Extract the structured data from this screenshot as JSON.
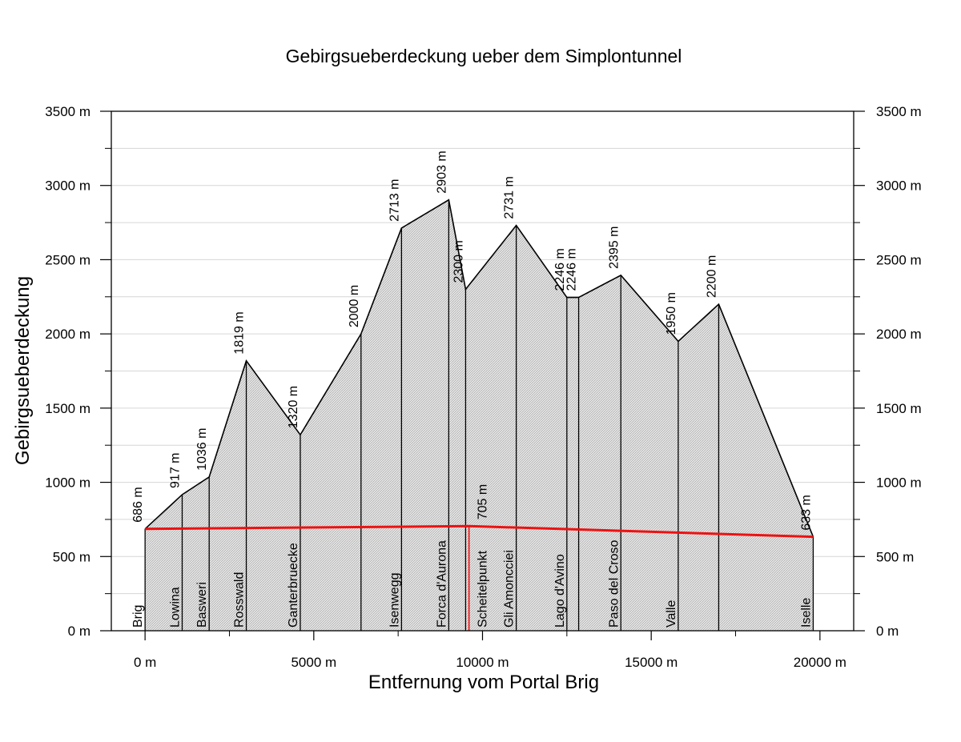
{
  "chart_data": {
    "type": "area",
    "title": "Gebirgsueberdeckung ueber dem Simplontunnel",
    "xlabel": "Entfernung vom Portal Brig",
    "ylabel": "Gebirgsueberdeckung",
    "xlim": [
      -1000,
      21000
    ],
    "ylim": [
      0,
      3500
    ],
    "x_ticks": [
      {
        "value": 0,
        "label": "0 m"
      },
      {
        "value": 5000,
        "label": "5000 m"
      },
      {
        "value": 10000,
        "label": "10000 m"
      },
      {
        "value": 15000,
        "label": "15000 m"
      },
      {
        "value": 20000,
        "label": "20000 m"
      }
    ],
    "y_ticks": [
      {
        "value": 0,
        "label": "0 m"
      },
      {
        "value": 500,
        "label": "500 m"
      },
      {
        "value": 1000,
        "label": "1000 m"
      },
      {
        "value": 1500,
        "label": "1500 m"
      },
      {
        "value": 2000,
        "label": "2000 m"
      },
      {
        "value": 2500,
        "label": "2500 m"
      },
      {
        "value": 3000,
        "label": "3000 m"
      },
      {
        "value": 3500,
        "label": "3500 m"
      }
    ],
    "minor_y_ticks": [
      250,
      750,
      1250,
      1750,
      2250,
      2750,
      3250
    ],
    "minor_x_ticks": [
      2500,
      7500,
      12500,
      17500
    ],
    "grid": "horizontal",
    "profile": [
      {
        "x": 0,
        "y": 686,
        "value_label": "686 m",
        "place": "Brig"
      },
      {
        "x": 1100,
        "y": 917,
        "value_label": "917 m",
        "place": "Lowina"
      },
      {
        "x": 1900,
        "y": 1036,
        "value_label": "1036 m",
        "place": "Basweri"
      },
      {
        "x": 3000,
        "y": 1819,
        "value_label": "1819 m",
        "place": "Rosswald"
      },
      {
        "x": 4600,
        "y": 1320,
        "value_label": "1320 m",
        "place": "Ganterbruecke"
      },
      {
        "x": 6400,
        "y": 2000,
        "value_label": "2000 m",
        "place": ""
      },
      {
        "x": 7600,
        "y": 2713,
        "value_label": "2713 m",
        "place": "Isenwegg"
      },
      {
        "x": 9000,
        "y": 2903,
        "value_label": "2903 m",
        "place": "Forca d'Aurona"
      },
      {
        "x": 9500,
        "y": 2300,
        "value_label": "2300 m",
        "place": ""
      },
      {
        "x": 11000,
        "y": 2731,
        "value_label": "2731 m",
        "place": "Gli Amoncciei"
      },
      {
        "x": 12500,
        "y": 2246,
        "value_label": "2246 m",
        "place": "Lago d'Avino"
      },
      {
        "x": 12850,
        "y": 2246,
        "value_label": "2246 m",
        "place": ""
      },
      {
        "x": 14100,
        "y": 2395,
        "value_label": "2395 m",
        "place": "Paso del Croso"
      },
      {
        "x": 15800,
        "y": 1950,
        "value_label": "1950 m",
        "place": "Valle"
      },
      {
        "x": 17000,
        "y": 2200,
        "value_label": "2200 m",
        "place": ""
      },
      {
        "x": 19800,
        "y": 633,
        "value_label": "633 m",
        "place": "Iselle"
      }
    ],
    "tunnel": {
      "color": "#ee1111",
      "points": [
        {
          "x": 0,
          "y": 686
        },
        {
          "x": 9600,
          "y": 705
        },
        {
          "x": 19800,
          "y": 633
        }
      ],
      "summit": {
        "x": 9600,
        "y": 705,
        "value_label": "705 m",
        "label": "Scheitelpunkt"
      }
    },
    "fill_color": "#d9d9d9"
  }
}
